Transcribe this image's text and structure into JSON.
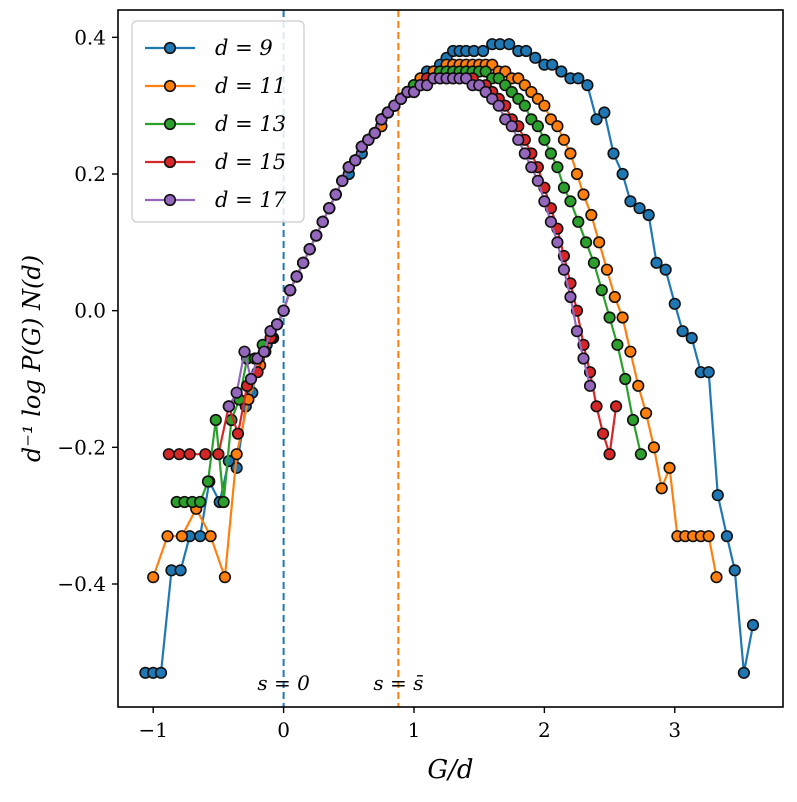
{
  "chart_data": {
    "type": "line",
    "title": "",
    "xlabel": "G/d",
    "ylabel": "d⁻¹ log P(G) N(d)",
    "xlim": [
      -1.27,
      3.83
    ],
    "ylim": [
      -0.58,
      0.44
    ],
    "xticks": [
      {
        "value": -1,
        "label": "−1"
      },
      {
        "value": 0,
        "label": "0"
      },
      {
        "value": 1,
        "label": "1"
      },
      {
        "value": 2,
        "label": "2"
      },
      {
        "value": 3,
        "label": "3"
      }
    ],
    "yticks": [
      {
        "value": -0.4,
        "label": "−0.4"
      },
      {
        "value": -0.2,
        "label": "−0.2"
      },
      {
        "value": 0.0,
        "label": "0.0"
      },
      {
        "value": 0.2,
        "label": "0.2"
      },
      {
        "value": 0.4,
        "label": "0.4"
      }
    ],
    "grid": false,
    "legend_position": "top-left",
    "vlines": [
      {
        "x": 0.0,
        "color": "#1f77b4",
        "label": "s = 0"
      },
      {
        "x": 0.88,
        "color": "#ff7f0e",
        "label": "s = s̄"
      }
    ],
    "series": [
      {
        "name": "d = 9",
        "color": "#1f77b4",
        "x": [
          -1.06,
          -1.0,
          -0.94,
          -0.86,
          -0.79,
          -0.72,
          -0.64,
          -0.57,
          -0.49,
          -0.42,
          -0.36,
          -0.29,
          -0.24,
          -0.19,
          -0.13,
          -0.08,
          0.0,
          0.05,
          0.1,
          0.15,
          0.2,
          0.25,
          0.3,
          0.35,
          0.4,
          0.45,
          0.5,
          0.55,
          0.6,
          0.65,
          0.7,
          0.75,
          0.8,
          0.85,
          0.9,
          0.95,
          1.0,
          1.05,
          1.1,
          1.15,
          1.2,
          1.25,
          1.3,
          1.35,
          1.4,
          1.46,
          1.53,
          1.6,
          1.66,
          1.73,
          1.8,
          1.86,
          1.93,
          2.0,
          2.06,
          2.13,
          2.2,
          2.26,
          2.33,
          2.4,
          2.46,
          2.53,
          2.6,
          2.66,
          2.73,
          2.8,
          2.86,
          2.93,
          3.0,
          3.06,
          3.13,
          3.2,
          3.26,
          3.33,
          3.4,
          3.46,
          3.53,
          3.6
        ],
        "y": [
          -0.53,
          -0.53,
          -0.53,
          -0.38,
          -0.38,
          -0.33,
          -0.33,
          -0.25,
          -0.28,
          -0.22,
          -0.23,
          -0.14,
          -0.12,
          -0.07,
          -0.05,
          -0.04,
          0.0,
          0.03,
          0.05,
          0.07,
          0.09,
          0.11,
          0.13,
          0.15,
          0.17,
          0.19,
          0.2,
          0.22,
          0.23,
          0.25,
          0.26,
          0.27,
          0.29,
          0.3,
          0.31,
          0.32,
          0.33,
          0.34,
          0.35,
          0.35,
          0.36,
          0.37,
          0.38,
          0.38,
          0.38,
          0.38,
          0.38,
          0.39,
          0.39,
          0.39,
          0.38,
          0.38,
          0.37,
          0.36,
          0.36,
          0.35,
          0.34,
          0.34,
          0.33,
          0.28,
          0.29,
          0.23,
          0.2,
          0.16,
          0.15,
          0.14,
          0.07,
          0.06,
          0.01,
          -0.03,
          -0.04,
          -0.09,
          -0.09,
          -0.27,
          -0.33,
          -0.38,
          -0.53,
          -0.46
        ]
      },
      {
        "name": "d = 11",
        "color": "#ff7f0e",
        "x": [
          -1.0,
          -0.89,
          -0.78,
          -0.67,
          -0.56,
          -0.45,
          -0.36,
          -0.27,
          -0.18,
          -0.09,
          0.0,
          0.05,
          0.1,
          0.15,
          0.2,
          0.25,
          0.3,
          0.35,
          0.4,
          0.45,
          0.5,
          0.55,
          0.6,
          0.65,
          0.7,
          0.75,
          0.8,
          0.85,
          0.9,
          0.95,
          1.0,
          1.05,
          1.1,
          1.15,
          1.2,
          1.25,
          1.3,
          1.35,
          1.4,
          1.45,
          1.5,
          1.55,
          1.6,
          1.65,
          1.7,
          1.75,
          1.8,
          1.85,
          1.9,
          1.95,
          2.0,
          2.05,
          2.1,
          2.15,
          2.2,
          2.25,
          2.3,
          2.36,
          2.42,
          2.48,
          2.54,
          2.6,
          2.66,
          2.72,
          2.78,
          2.84,
          2.9,
          2.96,
          3.02,
          3.08,
          3.14,
          3.2,
          3.26,
          3.32
        ],
        "y": [
          -0.39,
          -0.33,
          -0.33,
          -0.29,
          -0.33,
          -0.39,
          -0.21,
          -0.13,
          -0.08,
          -0.04,
          0.0,
          0.03,
          0.05,
          0.07,
          0.09,
          0.11,
          0.13,
          0.15,
          0.17,
          0.19,
          0.21,
          0.22,
          0.24,
          0.25,
          0.26,
          0.27,
          0.29,
          0.3,
          0.31,
          0.32,
          0.33,
          0.34,
          0.34,
          0.35,
          0.35,
          0.36,
          0.36,
          0.36,
          0.36,
          0.36,
          0.36,
          0.36,
          0.36,
          0.35,
          0.35,
          0.34,
          0.34,
          0.33,
          0.32,
          0.31,
          0.3,
          0.28,
          0.27,
          0.25,
          0.23,
          0.2,
          0.17,
          0.14,
          0.1,
          0.06,
          0.02,
          -0.01,
          -0.06,
          -0.11,
          -0.15,
          -0.2,
          -0.26,
          -0.23,
          -0.33,
          -0.33,
          -0.33,
          -0.33,
          -0.33,
          -0.39
        ]
      },
      {
        "name": "d = 13",
        "color": "#2ca02c",
        "x": [
          -0.82,
          -0.76,
          -0.7,
          -0.64,
          -0.58,
          -0.52,
          -0.46,
          -0.4,
          -0.34,
          -0.28,
          -0.22,
          -0.16,
          -0.1,
          -0.05,
          0.0,
          0.05,
          0.1,
          0.15,
          0.2,
          0.25,
          0.3,
          0.35,
          0.4,
          0.45,
          0.5,
          0.55,
          0.6,
          0.65,
          0.7,
          0.75,
          0.8,
          0.85,
          0.9,
          0.95,
          1.0,
          1.05,
          1.1,
          1.15,
          1.2,
          1.25,
          1.3,
          1.35,
          1.4,
          1.45,
          1.5,
          1.55,
          1.6,
          1.65,
          1.7,
          1.75,
          1.8,
          1.85,
          1.9,
          1.95,
          2.0,
          2.05,
          2.1,
          2.15,
          2.2,
          2.26,
          2.32,
          2.38,
          2.44,
          2.5,
          2.56,
          2.62,
          2.68,
          2.74
        ],
        "y": [
          -0.28,
          -0.28,
          -0.28,
          -0.28,
          -0.25,
          -0.16,
          -0.28,
          -0.16,
          -0.13,
          -0.07,
          -0.07,
          -0.05,
          -0.03,
          -0.02,
          0.0,
          0.03,
          0.05,
          0.07,
          0.09,
          0.11,
          0.13,
          0.15,
          0.17,
          0.19,
          0.21,
          0.22,
          0.24,
          0.25,
          0.26,
          0.28,
          0.29,
          0.3,
          0.31,
          0.32,
          0.33,
          0.33,
          0.34,
          0.34,
          0.35,
          0.35,
          0.35,
          0.35,
          0.35,
          0.35,
          0.35,
          0.35,
          0.34,
          0.34,
          0.33,
          0.32,
          0.31,
          0.3,
          0.28,
          0.27,
          0.25,
          0.23,
          0.21,
          0.18,
          0.16,
          0.13,
          0.1,
          0.07,
          0.03,
          -0.01,
          -0.05,
          -0.1,
          -0.16,
          -0.21
        ]
      },
      {
        "name": "d = 15",
        "color": "#d62728",
        "x": [
          -0.88,
          -0.8,
          -0.72,
          -0.6,
          -0.5,
          -0.42,
          -0.35,
          -0.28,
          -0.2,
          -0.14,
          -0.1,
          -0.05,
          0.0,
          0.05,
          0.1,
          0.15,
          0.2,
          0.25,
          0.3,
          0.35,
          0.4,
          0.45,
          0.5,
          0.55,
          0.6,
          0.65,
          0.7,
          0.75,
          0.8,
          0.85,
          0.9,
          0.95,
          1.0,
          1.05,
          1.1,
          1.15,
          1.2,
          1.25,
          1.3,
          1.35,
          1.4,
          1.45,
          1.5,
          1.55,
          1.6,
          1.65,
          1.7,
          1.75,
          1.8,
          1.85,
          1.9,
          1.95,
          2.0,
          2.05,
          2.1,
          2.15,
          2.2,
          2.25,
          2.3,
          2.35,
          2.4,
          2.45,
          2.5,
          2.55
        ],
        "y": [
          -0.21,
          -0.21,
          -0.21,
          -0.21,
          -0.21,
          -0.14,
          -0.18,
          -0.11,
          -0.09,
          -0.06,
          -0.04,
          -0.02,
          0.0,
          0.03,
          0.05,
          0.07,
          0.09,
          0.11,
          0.13,
          0.15,
          0.17,
          0.19,
          0.21,
          0.22,
          0.24,
          0.25,
          0.26,
          0.28,
          0.29,
          0.3,
          0.31,
          0.32,
          0.32,
          0.33,
          0.34,
          0.34,
          0.34,
          0.34,
          0.34,
          0.34,
          0.34,
          0.34,
          0.33,
          0.33,
          0.32,
          0.31,
          0.3,
          0.28,
          0.27,
          0.25,
          0.23,
          0.21,
          0.18,
          0.15,
          0.12,
          0.08,
          0.04,
          0.0,
          -0.05,
          -0.09,
          -0.14,
          -0.18,
          -0.21,
          -0.14
        ]
      },
      {
        "name": "d = 17",
        "color": "#9467bd",
        "x": [
          -0.42,
          -0.36,
          -0.3,
          -0.25,
          -0.2,
          -0.15,
          -0.1,
          -0.05,
          0.0,
          0.05,
          0.1,
          0.15,
          0.2,
          0.25,
          0.3,
          0.35,
          0.4,
          0.45,
          0.5,
          0.55,
          0.6,
          0.65,
          0.7,
          0.75,
          0.8,
          0.85,
          0.9,
          0.95,
          1.0,
          1.05,
          1.1,
          1.15,
          1.2,
          1.25,
          1.3,
          1.35,
          1.4,
          1.45,
          1.5,
          1.55,
          1.6,
          1.65,
          1.7,
          1.75,
          1.8,
          1.85,
          1.9,
          1.95,
          2.0,
          2.05,
          2.1,
          2.15,
          2.2,
          2.25,
          2.3,
          2.35
        ],
        "y": [
          -0.14,
          -0.12,
          -0.06,
          -0.1,
          -0.07,
          -0.06,
          -0.03,
          -0.02,
          0.0,
          0.03,
          0.05,
          0.07,
          0.09,
          0.11,
          0.13,
          0.15,
          0.17,
          0.19,
          0.21,
          0.22,
          0.24,
          0.25,
          0.26,
          0.28,
          0.29,
          0.3,
          0.31,
          0.32,
          0.32,
          0.33,
          0.33,
          0.34,
          0.34,
          0.34,
          0.34,
          0.34,
          0.34,
          0.33,
          0.33,
          0.32,
          0.31,
          0.3,
          0.28,
          0.27,
          0.25,
          0.23,
          0.21,
          0.19,
          0.16,
          0.13,
          0.1,
          0.06,
          0.02,
          -0.03,
          -0.07,
          -0.11
        ]
      }
    ]
  }
}
